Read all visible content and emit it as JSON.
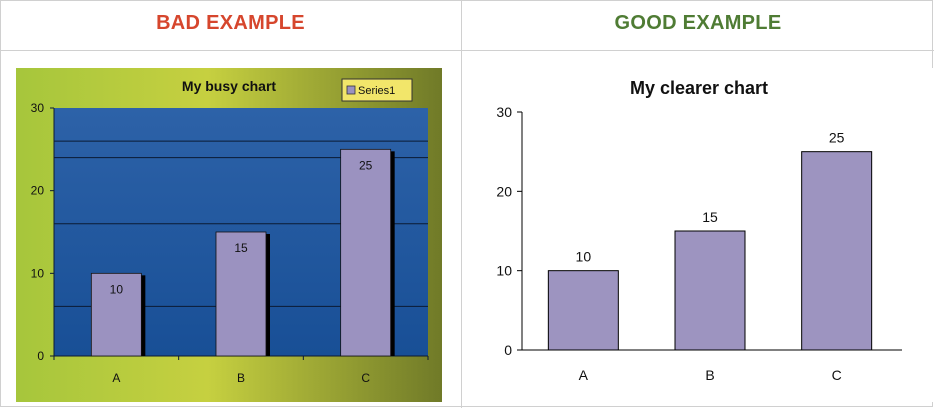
{
  "headings": {
    "bad": "BAD EXAMPLE",
    "good": "GOOD EXAMPLE",
    "bad_color": "#d6462d",
    "good_color": "#4f7c34"
  },
  "chart_data": [
    {
      "type": "bar",
      "title": "My busy chart",
      "categories": [
        "A",
        "B",
        "C"
      ],
      "series": [
        {
          "name": "Series1",
          "values": [
            10,
            15,
            25
          ]
        }
      ],
      "ylim": [
        0,
        30
      ],
      "yticks": [
        0,
        10,
        20,
        30
      ],
      "data_labels": [
        "10",
        "15",
        "25"
      ],
      "xlabel": "",
      "ylabel": "",
      "legend": "top-right",
      "grid": true,
      "colors": {
        "bar": "#9b92c0",
        "plot_bg": "#1e5aa0",
        "chart_bg": "#9fc03c",
        "legend_bg": "#f2e66a"
      }
    },
    {
      "type": "bar",
      "title": "My clearer chart",
      "categories": [
        "A",
        "B",
        "C"
      ],
      "series": [
        {
          "values": [
            10,
            15,
            25
          ]
        }
      ],
      "ylim": [
        0,
        30
      ],
      "yticks": [
        0,
        10,
        20,
        30
      ],
      "data_labels": [
        "10",
        "15",
        "25"
      ],
      "xlabel": "",
      "ylabel": "",
      "grid": false,
      "colors": {
        "bar": "#9d94c0"
      }
    }
  ]
}
